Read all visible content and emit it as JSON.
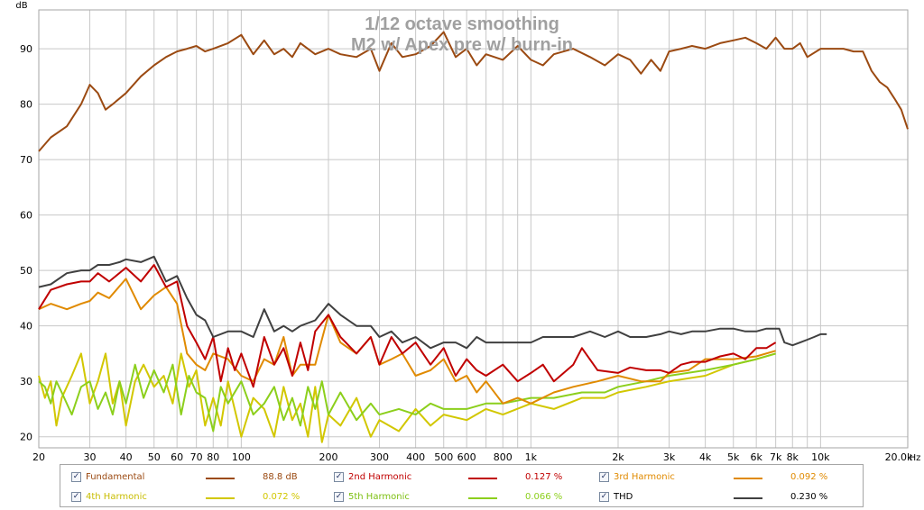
{
  "chart_data": {
    "type": "line",
    "title": "1/12 octave smoothing",
    "subtitle": "M2 w/ Apex pre w/ burn-in",
    "ylabel": "dB",
    "xunit": "Hz",
    "xscale": "log",
    "xlim": [
      20,
      20000
    ],
    "ylim": [
      18,
      97
    ],
    "grid": true,
    "legend_placement": "bottom",
    "yticks": [
      20,
      30,
      40,
      50,
      60,
      70,
      80,
      90
    ],
    "xticks": [
      {
        "v": 20,
        "label": "20"
      },
      {
        "v": 30,
        "label": "30"
      },
      {
        "v": 40,
        "label": "40"
      },
      {
        "v": 50,
        "label": "50"
      },
      {
        "v": 60,
        "label": "60"
      },
      {
        "v": 70,
        "label": "70"
      },
      {
        "v": 80,
        "label": "80"
      },
      {
        "v": 100,
        "label": "100"
      },
      {
        "v": 200,
        "label": "200"
      },
      {
        "v": 300,
        "label": "300"
      },
      {
        "v": 400,
        "label": "400"
      },
      {
        "v": 500,
        "label": "500"
      },
      {
        "v": 600,
        "label": "600"
      },
      {
        "v": 800,
        "label": "800"
      },
      {
        "v": 1000,
        "label": "1k"
      },
      {
        "v": 2000,
        "label": "2k"
      },
      {
        "v": 3000,
        "label": "3k"
      },
      {
        "v": 4000,
        "label": "4k"
      },
      {
        "v": 5000,
        "label": "5k"
      },
      {
        "v": 6000,
        "label": "6k"
      },
      {
        "v": 7000,
        "label": "7k"
      },
      {
        "v": 8000,
        "label": "8k"
      },
      {
        "v": 10000,
        "label": "10k"
      },
      {
        "v": 20000,
        "label": "20.0k"
      }
    ],
    "series": [
      {
        "name": "Fundamental",
        "value": "88.8 dB",
        "color": "#9b4a12",
        "checked": true,
        "x": [
          20,
          22,
          25,
          28,
          30,
          32,
          34,
          36,
          40,
          45,
          50,
          55,
          60,
          65,
          70,
          75,
          80,
          90,
          100,
          110,
          120,
          130,
          140,
          150,
          160,
          180,
          200,
          220,
          250,
          280,
          300,
          330,
          360,
          400,
          450,
          500,
          550,
          600,
          650,
          700,
          800,
          900,
          1000,
          1100,
          1200,
          1400,
          1600,
          1800,
          2000,
          2200,
          2400,
          2600,
          2800,
          3000,
          3300,
          3600,
          4000,
          4500,
          5000,
          5500,
          6000,
          6500,
          7000,
          7500,
          8000,
          8500,
          9000,
          10000,
          11000,
          12000,
          13000,
          14000,
          15000,
          16000,
          17000,
          18000,
          19000,
          20000
        ],
        "y": [
          71.5,
          74,
          76,
          80,
          83.5,
          82,
          79,
          80,
          82,
          85,
          87,
          88.5,
          89.5,
          90,
          90.5,
          89.5,
          90,
          91,
          92.5,
          89,
          91.5,
          89,
          90,
          88.5,
          91,
          89,
          90,
          89,
          88.5,
          90,
          86,
          91,
          88.5,
          89,
          90.5,
          93,
          88.5,
          90,
          87,
          89,
          88,
          90.5,
          88,
          87,
          89,
          90,
          88.5,
          87,
          89,
          88,
          85.5,
          88,
          86,
          89.5,
          90,
          90.5,
          90,
          91,
          91.5,
          92,
          91,
          90,
          92,
          90,
          90,
          91,
          88.5,
          90,
          90,
          90,
          89.5,
          89.5,
          86,
          84,
          83,
          81,
          79,
          75.5
        ]
      },
      {
        "name": "2nd Harmonic",
        "value": "0.127 %",
        "color": "#c00000",
        "checked": true,
        "x": [
          20,
          22,
          25,
          28,
          30,
          32,
          35,
          40,
          45,
          50,
          55,
          60,
          65,
          70,
          75,
          80,
          85,
          90,
          95,
          100,
          110,
          120,
          130,
          140,
          150,
          160,
          170,
          180,
          200,
          220,
          250,
          280,
          300,
          330,
          360,
          400,
          450,
          500,
          550,
          600,
          650,
          700,
          800,
          900,
          1000,
          1100,
          1200,
          1400,
          1500,
          1700,
          2000,
          2200,
          2500,
          2800,
          3000,
          3300,
          3600,
          4000,
          4500,
          5000,
          5500,
          6000,
          6500,
          7000
        ],
        "y": [
          43,
          46.5,
          47.5,
          48,
          48,
          49.5,
          48,
          50.5,
          48,
          51,
          47,
          48,
          40,
          37,
          34,
          38,
          30,
          36,
          32,
          35,
          29,
          38,
          33,
          36,
          31,
          37,
          32,
          39,
          42,
          38,
          35,
          38,
          33,
          38,
          35,
          37,
          33,
          36,
          31,
          34,
          32,
          31,
          33,
          30,
          31.5,
          33,
          30,
          33,
          36,
          32,
          31.5,
          32.5,
          32,
          32,
          31.5,
          33,
          33.5,
          33.5,
          34.5,
          35,
          34,
          36,
          36,
          37
        ]
      },
      {
        "name": "3rd Harmonic",
        "value": "0.092 %",
        "color": "#e08a00",
        "checked": true,
        "x": [
          20,
          22,
          25,
          28,
          30,
          32,
          35,
          40,
          45,
          50,
          55,
          60,
          65,
          70,
          75,
          80,
          90,
          100,
          110,
          120,
          130,
          140,
          150,
          160,
          180,
          200,
          220,
          250,
          280,
          300,
          330,
          360,
          400,
          450,
          500,
          550,
          600,
          650,
          700,
          800,
          900,
          1000,
          1200,
          1400,
          1700,
          2000,
          2400,
          2800,
          3000,
          3500,
          4000,
          5000,
          6000,
          7000
        ],
        "y": [
          43,
          44,
          43,
          44,
          44.5,
          46,
          45,
          48.5,
          43,
          45.5,
          47,
          44,
          35,
          33,
          32,
          35,
          34,
          31,
          30,
          34,
          33,
          38,
          31,
          33,
          33,
          42,
          37,
          35,
          38,
          33,
          34,
          35,
          31,
          32,
          34,
          30,
          31,
          28,
          30,
          26,
          27,
          26,
          28,
          29,
          30,
          31,
          30,
          30,
          31.5,
          32,
          34,
          34,
          34.5,
          35.5
        ]
      },
      {
        "name": "4th Harmonic",
        "value": "0.072 %",
        "color": "#d2c700",
        "checked": true,
        "x": [
          20,
          21,
          22,
          23,
          24,
          26,
          28,
          30,
          32,
          34,
          36,
          38,
          40,
          43,
          46,
          50,
          54,
          58,
          62,
          66,
          70,
          75,
          80,
          85,
          90,
          100,
          110,
          120,
          130,
          140,
          150,
          160,
          170,
          180,
          190,
          200,
          220,
          250,
          280,
          300,
          350,
          400,
          450,
          500,
          600,
          700,
          800,
          1000,
          1200,
          1500,
          1800,
          2000,
          2500,
          3000,
          4000,
          5000,
          6000,
          7000
        ],
        "y": [
          31,
          27,
          30,
          22,
          27,
          31,
          35,
          26,
          30,
          35,
          26,
          30,
          22,
          30,
          33,
          29,
          31,
          26,
          35,
          29,
          32,
          22,
          27,
          22,
          30,
          20,
          27,
          25,
          20,
          29,
          23,
          26,
          20,
          29,
          19,
          24,
          22,
          27,
          20,
          23,
          21,
          25,
          22,
          24,
          23,
          25,
          24,
          26,
          25,
          27,
          27,
          28,
          29,
          30,
          31,
          33,
          34,
          35
        ]
      },
      {
        "name": "5th Harmonic",
        "value": "0.066 %",
        "color": "#8ccf1c",
        "checked": true,
        "x": [
          20,
          21,
          22,
          23,
          24,
          26,
          28,
          30,
          32,
          34,
          36,
          38,
          40,
          43,
          46,
          50,
          54,
          58,
          62,
          66,
          70,
          75,
          80,
          85,
          90,
          100,
          110,
          120,
          130,
          140,
          150,
          160,
          170,
          180,
          190,
          200,
          220,
          250,
          280,
          300,
          350,
          400,
          450,
          500,
          600,
          700,
          800,
          1000,
          1200,
          1500,
          1800,
          2000,
          2500,
          3000,
          4000,
          5000,
          6000,
          7000
        ],
        "y": [
          30,
          29,
          26,
          30,
          28,
          24,
          29,
          30,
          25,
          28,
          24,
          30,
          26,
          33,
          27,
          32,
          28,
          33,
          24,
          31,
          28,
          27,
          21,
          29,
          26,
          30,
          24,
          26,
          29,
          23,
          27,
          22,
          29,
          25,
          30,
          24,
          28,
          23,
          26,
          24,
          25,
          24,
          26,
          25,
          25,
          26,
          26,
          27,
          27,
          28,
          28,
          29,
          30,
          31,
          32,
          33,
          34,
          35
        ]
      },
      {
        "name": "THD",
        "value": "0.230 %",
        "color": "#404040",
        "checked": true,
        "x": [
          20,
          22,
          25,
          28,
          30,
          32,
          35,
          38,
          40,
          45,
          50,
          55,
          60,
          65,
          70,
          75,
          80,
          90,
          100,
          110,
          120,
          130,
          140,
          150,
          160,
          180,
          200,
          220,
          250,
          280,
          300,
          330,
          360,
          400,
          450,
          500,
          550,
          600,
          650,
          700,
          800,
          900,
          1000,
          1100,
          1200,
          1400,
          1600,
          1800,
          2000,
          2200,
          2500,
          2800,
          3000,
          3300,
          3600,
          4000,
          4500,
          5000,
          5500,
          6000,
          6500,
          7000,
          7200,
          7500,
          8000,
          8500,
          9000,
          9500,
          10000,
          10500
        ],
        "y": [
          47,
          47.5,
          49.5,
          50,
          50,
          51,
          51,
          51.5,
          52,
          51.5,
          52.5,
          48,
          49,
          45,
          42,
          41,
          38,
          39,
          39,
          38,
          43,
          39,
          40,
          39,
          40,
          41,
          44,
          42,
          40,
          40,
          38,
          39,
          37,
          38,
          36,
          37,
          37,
          36,
          38,
          37,
          37,
          37,
          37,
          38,
          38,
          38,
          39,
          38,
          39,
          38,
          38,
          38.5,
          39,
          38.5,
          39,
          39,
          39.5,
          39.5,
          39,
          39,
          39.5,
          39.5,
          39.5,
          37,
          36.5,
          37,
          37.5,
          38,
          38.5,
          38.5
        ]
      }
    ]
  }
}
